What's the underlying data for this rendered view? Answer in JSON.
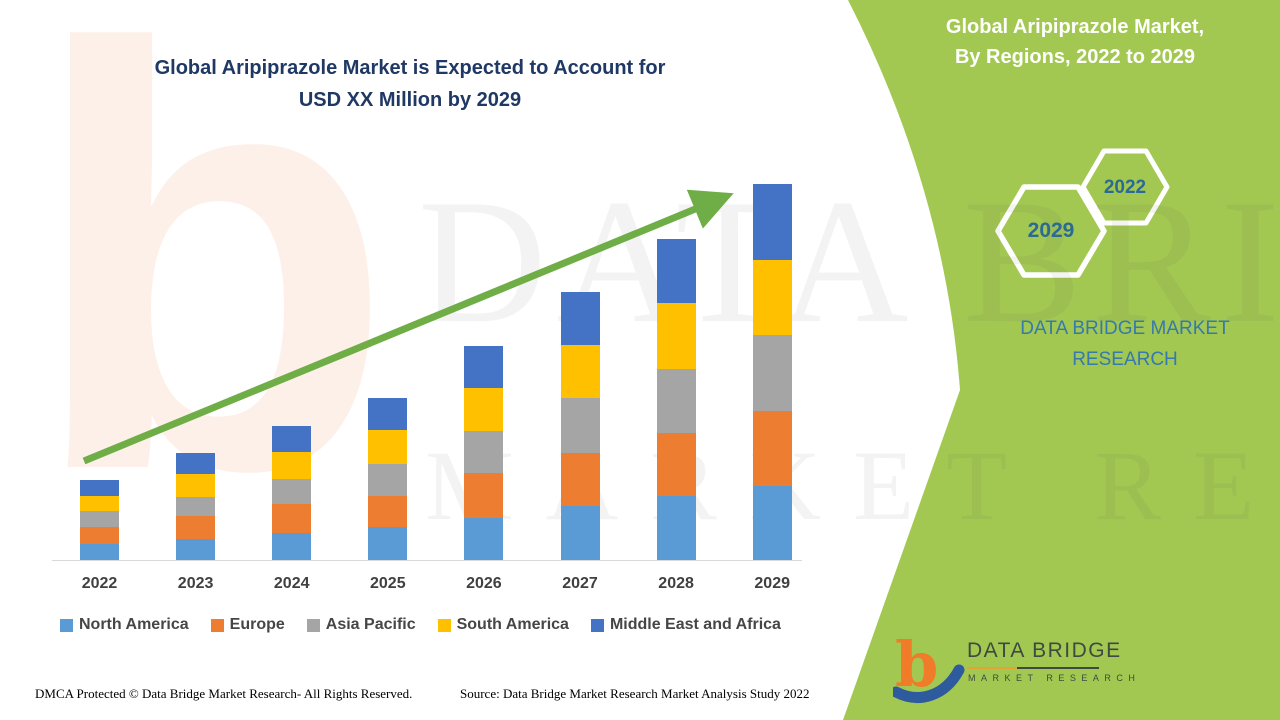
{
  "header": {
    "title_line1": "Global Aripiprazole Market is Expected to Account for",
    "title_line2": "USD XX Million by 2029"
  },
  "side_panel": {
    "bg_color": "#a3c852",
    "heading_line1": "Global Aripiprazole Market,",
    "heading_line2": "By Regions, 2022 to 2029",
    "hexagon_large_label": "2029",
    "hexagon_small_label": "2022",
    "caption": "DATA BRIDGE MARKET RESEARCH"
  },
  "watermarks": {
    "letter": "b",
    "line1": "DATA BRIDGE",
    "line2": "MARKET RESEARCH"
  },
  "chart_data": {
    "type": "bar",
    "stacked": true,
    "title": "Global Aripiprazole Market is Expected to Account for USD XX Million by 2029",
    "categories": [
      "2022",
      "2023",
      "2024",
      "2025",
      "2026",
      "2027",
      "2028",
      "2029"
    ],
    "series": [
      {
        "name": "North America",
        "color": "#5B9BD5",
        "values": [
          16,
          21,
          27,
          33,
          42,
          54,
          64,
          74
        ]
      },
      {
        "name": "Europe",
        "color": "#ED7D31",
        "values": [
          17,
          23,
          29,
          31,
          45,
          53,
          63,
          75
        ]
      },
      {
        "name": "Asia Pacific",
        "color": "#A5A5A5",
        "values": [
          16,
          19,
          25,
          32,
          42,
          55,
          64,
          76
        ]
      },
      {
        "name": "South America",
        "color": "#FFC000",
        "values": [
          15,
          23,
          27,
          34,
          43,
          53,
          66,
          75
        ]
      },
      {
        "name": "Middle East and Africa",
        "color": "#4472C4",
        "values": [
          16,
          21,
          26,
          32,
          42,
          53,
          64,
          76
        ]
      }
    ],
    "value_labels_shown": false,
    "value_axis_visible": false,
    "gridlines": false,
    "legend_position": "bottom",
    "trend_arrow": true,
    "trend_arrow_color": "#6fad47"
  },
  "logo": {
    "name": "DATA BRIDGE",
    "tagline": "MARKET RESEARCH"
  },
  "footer": {
    "dmca": "DMCA Protected © Data Bridge Market Research- All Rights Reserved.",
    "source": "Source: Data Bridge Market Research Market Analysis Study 2022"
  }
}
